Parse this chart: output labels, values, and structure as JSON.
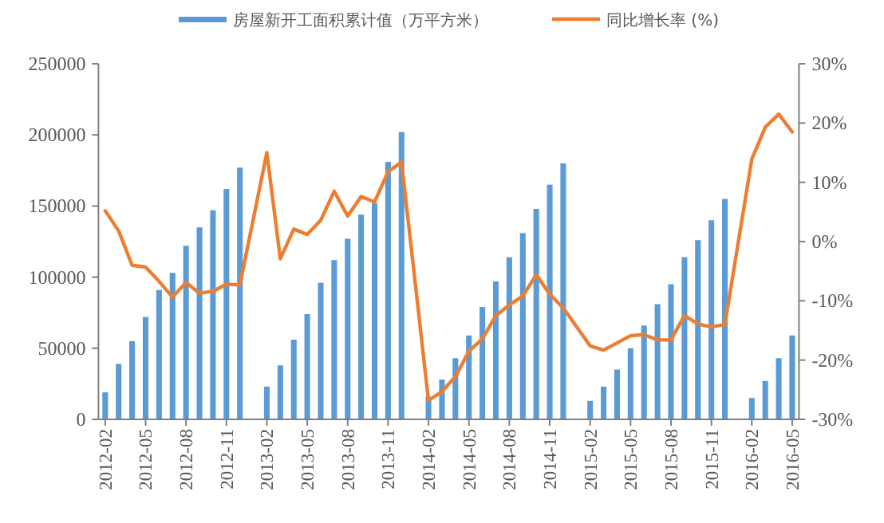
{
  "chart_data": {
    "type": "bar",
    "categories": [
      "2012-02",
      null,
      null,
      "2012-05",
      null,
      null,
      "2012-08",
      null,
      null,
      "2012-11",
      null,
      null,
      "2013-02",
      null,
      null,
      "2013-05",
      null,
      null,
      "2013-08",
      null,
      null,
      "2013-11",
      null,
      null,
      "2014-02",
      null,
      null,
      "2014-05",
      null,
      null,
      "2014-08",
      null,
      null,
      "2014-11",
      null,
      null,
      "2015-02",
      null,
      null,
      "2015-05",
      null,
      null,
      "2015-08",
      null,
      null,
      "2015-11",
      null,
      null,
      "2016-02",
      null,
      null,
      "2016-05"
    ],
    "series": [
      {
        "name": "房屋新开工面积累计值（万平方米）",
        "color": "#5b9bd5",
        "values": [
          19000,
          39000,
          55000,
          72000,
          91000,
          103000,
          122000,
          135000,
          147000,
          162000,
          177000,
          null,
          23000,
          38000,
          56000,
          74000,
          96000,
          112000,
          127000,
          144000,
          152000,
          181000,
          202000,
          null,
          16000,
          28000,
          43000,
          59000,
          79000,
          97000,
          114000,
          131000,
          148000,
          165000,
          180000,
          null,
          13000,
          23000,
          35000,
          50000,
          66000,
          81000,
          95000,
          114000,
          126000,
          140000,
          155000,
          null,
          15000,
          27000,
          43000,
          59000
        ]
      },
      {
        "name": "同比增长率 (%)",
        "type": "line",
        "axis": "y2",
        "color": "#ed7d31",
        "values": [
          5.2,
          1.8,
          -4.0,
          -4.3,
          -6.7,
          -9.4,
          -6.9,
          -8.7,
          -8.4,
          -7.2,
          -7.3,
          null,
          15.0,
          -2.9,
          2.1,
          1.2,
          3.6,
          8.5,
          4.3,
          7.6,
          6.7,
          11.8,
          13.4,
          null,
          -26.8,
          -25.3,
          -22.8,
          -18.5,
          -16.4,
          -12.5,
          -10.7,
          -9.2,
          -5.6,
          -8.9,
          -11.2,
          null,
          -17.6,
          -18.3,
          -17.1,
          -15.9,
          -15.7,
          -16.6,
          -16.6,
          -12.5,
          -13.9,
          -14.4,
          -14.0,
          null,
          13.9,
          19.3,
          21.5,
          18.5
        ]
      }
    ],
    "ylim": [
      0,
      250000
    ],
    "yticks": [
      0,
      50000,
      100000,
      150000,
      200000,
      250000
    ],
    "y2lim": [
      -30,
      30
    ],
    "y2ticks": [
      {
        "value": -30,
        "label": "-30%"
      },
      {
        "value": -20,
        "label": "-20%"
      },
      {
        "value": -10,
        "label": "-10%"
      },
      {
        "value": 0,
        "label": "0%"
      },
      {
        "value": 10,
        "label": "10%"
      },
      {
        "value": 20,
        "label": "20%"
      },
      {
        "value": 30,
        "label": "30%"
      }
    ],
    "legend": "top",
    "grid": false
  }
}
